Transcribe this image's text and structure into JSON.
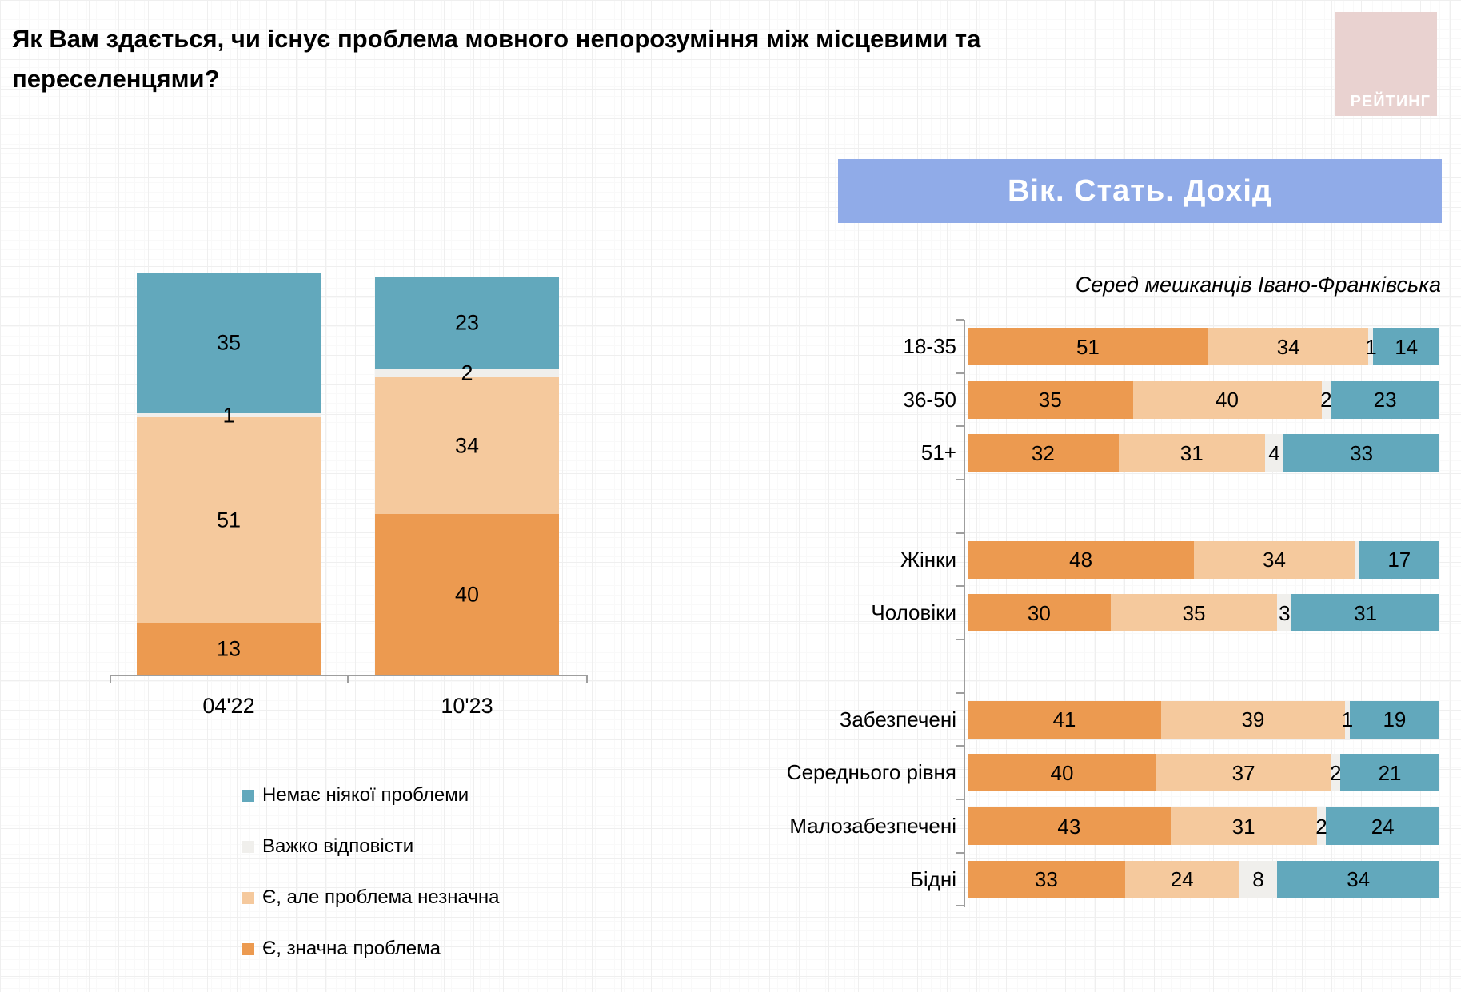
{
  "page": {
    "title": "Як Вам здається, чи існує проблема мовного непорозуміння між місцевими та\nпереселенцями?",
    "logo_text": "РЕЙТИНГ"
  },
  "section": {
    "header": "Вік. Стать. Дохід",
    "subtitle": "Серед мешканців Івано-Франківська"
  },
  "colors": {
    "no_problem": "#62A8BC",
    "hard_to_say": "#F0EFEC",
    "minor_problem": "#F5C99D",
    "major_problem": "#EC9A50",
    "header_bg": "#90ABE8",
    "logo_bg": "#E9D2D0",
    "axis": "#9E9E9E"
  },
  "legend": [
    {
      "key": "no_problem",
      "label": "Немає ніякої проблеми"
    },
    {
      "key": "hard_to_say",
      "label": "Важко відповісти"
    },
    {
      "key": "minor_problem",
      "label": "Є, але проблема незначна"
    },
    {
      "key": "major_problem",
      "label": "Є, значна проблема"
    }
  ],
  "chart_data": [
    {
      "id": "trend",
      "type": "bar",
      "stacked": true,
      "orientation": "vertical",
      "categories": [
        "04'22",
        "10'23"
      ],
      "series": [
        {
          "name": "Немає ніякої проблеми",
          "key": "no_problem",
          "values": [
            35,
            23
          ]
        },
        {
          "name": "Важко відповісти",
          "key": "hard_to_say",
          "values": [
            1,
            2
          ]
        },
        {
          "name": "Є, але проблема незначна",
          "key": "minor_problem",
          "values": [
            51,
            34
          ]
        },
        {
          "name": "Є, значна проблема",
          "key": "major_problem",
          "values": [
            13,
            40
          ]
        }
      ],
      "value_unit": "%",
      "ylim": [
        0,
        100
      ],
      "legend_position": "bottom-left"
    },
    {
      "id": "demographics",
      "type": "bar",
      "stacked": true,
      "orientation": "horizontal",
      "title": "Вік. Стать. Дохід",
      "subtitle": "Серед мешканців Івано-Франківська",
      "series_order": [
        "major_problem",
        "minor_problem",
        "hard_to_say",
        "no_problem"
      ],
      "xlim": [
        0,
        100
      ],
      "value_unit": "%",
      "groups": [
        {
          "rows": [
            {
              "category": "18-35",
              "values": [
                51,
                34,
                1,
                14
              ],
              "labels": [
                "51",
                "34",
                "1",
                "14"
              ]
            },
            {
              "category": "36-50",
              "values": [
                35,
                40,
                2,
                23
              ],
              "labels": [
                "35",
                "40",
                "2",
                "23"
              ]
            },
            {
              "category": "51+",
              "values": [
                32,
                31,
                4,
                33
              ],
              "labels": [
                "32",
                "31",
                "4",
                "33"
              ]
            }
          ]
        },
        {
          "rows": [
            {
              "category": "Жінки",
              "values": [
                48,
                34,
                1,
                17
              ],
              "labels": [
                "48",
                "34",
                "",
                "17"
              ]
            },
            {
              "category": "Чоловіки",
              "values": [
                30,
                35,
                3,
                31
              ],
              "labels": [
                "30",
                "35",
                "3",
                "31"
              ]
            }
          ]
        },
        {
          "rows": [
            {
              "category": "Забезпечені",
              "values": [
                41,
                39,
                1,
                19
              ],
              "labels": [
                "41",
                "39",
                "1",
                "19"
              ]
            },
            {
              "category": "Середнього рівня",
              "values": [
                40,
                37,
                2,
                21
              ],
              "labels": [
                "40",
                "37",
                "2",
                "21"
              ]
            },
            {
              "category": "Малозабезпечені",
              "values": [
                43,
                31,
                2,
                24
              ],
              "labels": [
                "43",
                "31",
                "2",
                "24"
              ]
            },
            {
              "category": "Бідні",
              "values": [
                33,
                24,
                8,
                34
              ],
              "labels": [
                "33",
                "24",
                "8",
                "34"
              ]
            }
          ]
        }
      ]
    }
  ]
}
